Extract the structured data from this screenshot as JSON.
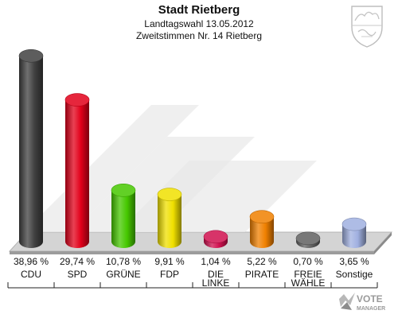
{
  "header": {
    "title": "Stadt Rietberg",
    "subtitle": "Landtagswahl 13.05.2012",
    "detail": "Zweitstimmen Nr. 14 Rietberg"
  },
  "chart_data": {
    "type": "bar",
    "title": "Stadt Rietberg",
    "subtitle": "Landtagswahl 13.05.2012",
    "caption": "Zweitstimmen Nr. 14 Rietberg",
    "categories": [
      "CDU",
      "SPD",
      "GRÜNE",
      "FDP",
      "DIE LINKE",
      "PIRATE",
      "FREIE WÄHLE",
      "Sonstige"
    ],
    "category_lines": [
      [
        "CDU"
      ],
      [
        "SPD"
      ],
      [
        "GRÜNE"
      ],
      [
        "FDP"
      ],
      [
        "DIE",
        "LINKE"
      ],
      [
        "PIRATE"
      ],
      [
        "FREIE",
        "WÄHLE"
      ],
      [
        "Sonstige"
      ]
    ],
    "values": [
      38.96,
      29.74,
      10.78,
      9.91,
      1.04,
      5.22,
      0.7,
      3.65
    ],
    "value_labels": [
      "38,96 %",
      "29,74 %",
      "10,78 %",
      "9,91 %",
      "1,04 %",
      "5,22 %",
      "0,70 %",
      "3,65 %"
    ],
    "colors": [
      "#404040",
      "#e2001a",
      "#46c800",
      "#f0e000",
      "#d0104f",
      "#f08000",
      "#606060",
      "#a0b0e0"
    ],
    "ylim": [
      0,
      40
    ],
    "grid": false,
    "legend": "none",
    "style": "3d-cylinder"
  },
  "watermark": {
    "line1": "VOTE",
    "line2": "MANAGER"
  },
  "icons": {
    "emblem": "coat-of-arms-icon",
    "watermark": "vote-manager-logo-icon"
  }
}
